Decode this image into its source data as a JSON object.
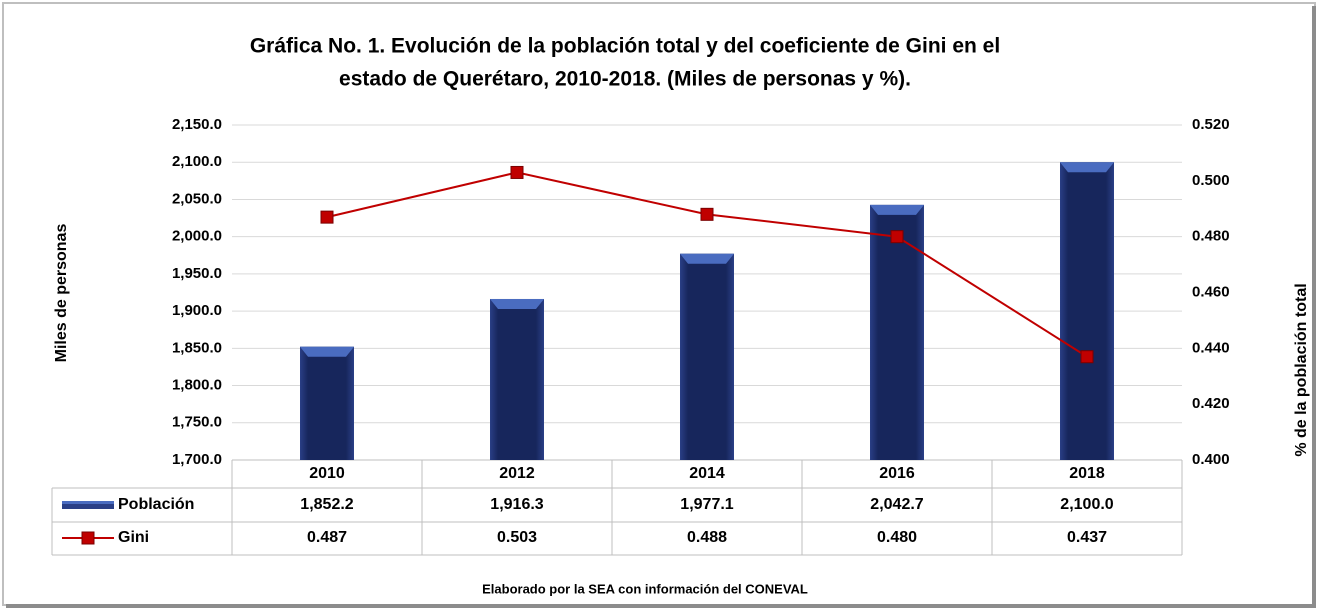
{
  "chart_data": {
    "type": "bar",
    "title": [
      "Gráfica No. 1. Evolución de la población total y del coeficiente de Gini en el",
      "estado de Querétaro, 2010-2018. (Miles de personas y %)."
    ],
    "y_label": "Miles de personas",
    "y2_label": "% de la población total",
    "source": "Elaborado por la SEA con información del CONEVAL",
    "categories": [
      "2010",
      "2012",
      "2014",
      "2016",
      "2018"
    ],
    "series": [
      {
        "name": "Población",
        "type": "bar",
        "color": "#1f2f6b",
        "values": [
          1852.2,
          1916.3,
          1977.1,
          2042.7,
          2100.0
        ],
        "value_labels": [
          "1,852.2",
          "1,916.3",
          "1,977.1",
          "2,042.7",
          "2,100.0"
        ]
      },
      {
        "name": "Gini",
        "type": "line",
        "axis": "y2",
        "color": "#c00000",
        "values": [
          0.487,
          0.503,
          0.488,
          0.48,
          0.437
        ],
        "value_labels": [
          "0.487",
          "0.503",
          "0.488",
          "0.480",
          "0.437"
        ]
      }
    ],
    "ylim": [
      1700,
      2150
    ],
    "yticks": [
      {
        "value": 1700,
        "label": "1,700.0"
      },
      {
        "value": 1750,
        "label": "1,750.0"
      },
      {
        "value": 1800,
        "label": "1,800.0"
      },
      {
        "value": 1850,
        "label": "1,850.0"
      },
      {
        "value": 1900,
        "label": "1,900.0"
      },
      {
        "value": 1950,
        "label": "1,950.0"
      },
      {
        "value": 2000,
        "label": "2,000.0"
      },
      {
        "value": 2050,
        "label": "2,050.0"
      },
      {
        "value": 2100,
        "label": "2,100.0"
      },
      {
        "value": 2150,
        "label": "2,150.0"
      }
    ],
    "y2lim": [
      0.4,
      0.52
    ],
    "y2ticks": [
      {
        "value": 0.4,
        "label": "0.400"
      },
      {
        "value": 0.42,
        "label": "0.420"
      },
      {
        "value": 0.44,
        "label": "0.440"
      },
      {
        "value": 0.46,
        "label": "0.460"
      },
      {
        "value": 0.48,
        "label": "0.480"
      },
      {
        "value": 0.5,
        "label": "0.500"
      },
      {
        "value": 0.52,
        "label": "0.520"
      }
    ],
    "grid": true
  }
}
